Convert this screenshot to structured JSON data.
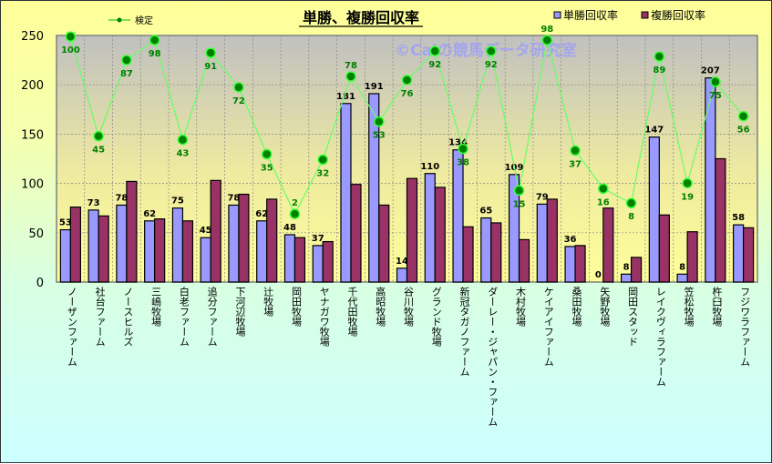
{
  "chart_data": {
    "type": "bar",
    "title": "単勝、複勝回収率",
    "watermark": "©Caiの競馬データ研究室",
    "xlabel": "",
    "ylabel": "",
    "ylim": [
      0,
      250
    ],
    "yticks": [
      0,
      50,
      100,
      150,
      200,
      250
    ],
    "grid": true,
    "legend_position": "top",
    "categories": [
      "ノーザンファーム",
      "社台ファーム",
      "ノースヒルズ",
      "三嶋牧場",
      "白老ファーム",
      "追分ファーム",
      "下河辺牧場",
      "辻牧場",
      "岡田牧場",
      "ヤナガワ牧場",
      "千代田牧場",
      "高昭牧場",
      "谷川牧場",
      "グランド牧場",
      "新冠タガノファーム",
      "ダーレー・ジャパン・ファーム",
      "木村牧場",
      "ケイアイファーム",
      "桑田牧場",
      "矢野牧場",
      "岡田スタッド",
      "レイクヴィラファーム",
      "笠松牧場",
      "杵臼牧場",
      "フジワラファーム"
    ],
    "series": [
      {
        "name": "単勝回収率",
        "type": "bar",
        "color": "#9999ff",
        "labels": true,
        "values": [
          53,
          73,
          78,
          62,
          75,
          45,
          78,
          62,
          48,
          37,
          181,
          191,
          14,
          110,
          134,
          65,
          109,
          79,
          36,
          0,
          8,
          147,
          8,
          207,
          58
        ]
      },
      {
        "name": "複勝回収率",
        "type": "bar",
        "color": "#993366",
        "labels": false,
        "values": [
          76,
          67,
          102,
          64,
          62,
          103,
          89,
          84,
          45,
          41,
          99,
          78,
          105,
          96,
          56,
          60,
          43,
          84,
          37,
          75,
          25,
          68,
          51,
          125,
          55
        ]
      },
      {
        "name": "検定",
        "type": "line",
        "color": "#00cc00",
        "labels": true,
        "secondary_axis_range": [
          -35.6,
          100.6
        ],
        "values": [
          100,
          45,
          87,
          98,
          43,
          91,
          72,
          35,
          2,
          32,
          78,
          53,
          76,
          92,
          38,
          92,
          15,
          98,
          37,
          16,
          8,
          89,
          19,
          75,
          56
        ]
      }
    ]
  }
}
